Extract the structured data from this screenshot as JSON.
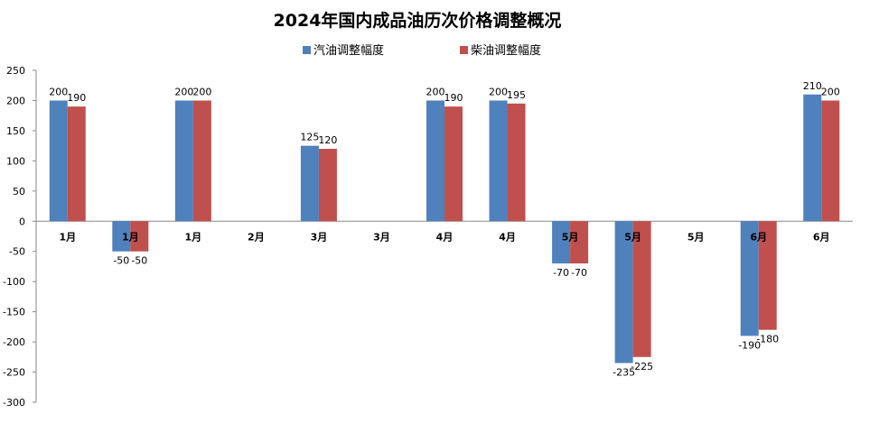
{
  "chart_data": {
    "type": "bar",
    "title": "2024年国内成品油历次价格调整概况",
    "categories": [
      "1月",
      "1月",
      "1月",
      "2月",
      "3月",
      "3月",
      "4月",
      "4月",
      "5月",
      "5月",
      "5月",
      "6月",
      "6月"
    ],
    "series": [
      {
        "name": "汽油调整幅度",
        "color": "#4F81BD",
        "values": [
          200,
          -50,
          200,
          0,
          125,
          0,
          200,
          200,
          -70,
          -235,
          0,
          -190,
          210
        ],
        "labels": [
          "200",
          "-50",
          "200",
          "",
          "125",
          "",
          "200",
          "200",
          "-70",
          "-235",
          "",
          "-190",
          "210"
        ]
      },
      {
        "name": "柴油调整幅度",
        "color": "#C0504D",
        "values": [
          190,
          -50,
          200,
          0,
          120,
          0,
          190,
          195,
          -70,
          -225,
          0,
          -180,
          200
        ],
        "labels": [
          "190",
          "-50",
          "200",
          "",
          "120",
          "",
          "190",
          "195",
          "-70",
          "-225",
          "",
          "-180",
          "200"
        ]
      }
    ],
    "ylim": [
      -300,
      250
    ],
    "yticks": [
      250,
      200,
      150,
      100,
      50,
      0,
      -50,
      -100,
      -150,
      -200,
      -250,
      -300
    ],
    "xlabel": "",
    "ylabel": "",
    "legend_position": "top",
    "grid": false
  }
}
